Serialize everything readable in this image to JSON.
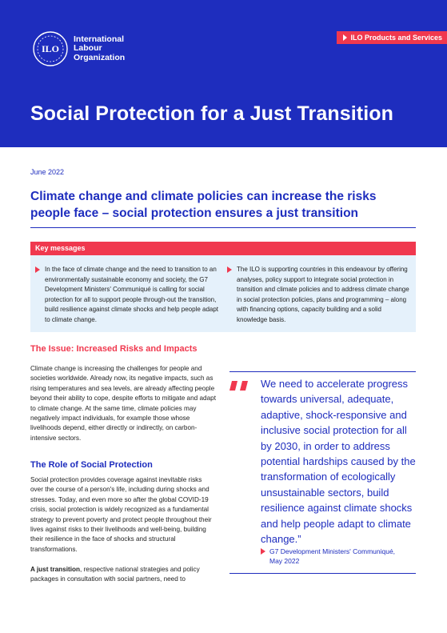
{
  "header": {
    "org_line1": "International",
    "org_line2": "Labour",
    "org_line3": "Organization",
    "logo_text": "ILO",
    "products_label": "ILO Products and Services",
    "title": "Social Protection for a Just Transition"
  },
  "date": "June 2022",
  "subtitle": "Climate change and climate policies can increase the risks people face – social protection ensures a just transition",
  "key_messages": {
    "heading": "Key messages",
    "items": [
      "In the face of climate change and the need to transition to an environmentally sustainable economy and society, the G7 Development Ministers' Communiqué is calling for social protection for all to support people through-out the transition, build resilience against climate shocks and help people adapt to climate change.",
      "The ILO is supporting countries in this endeavour by offering analyses, policy support to integrate social protection in transition and climate policies and to address climate change in social protection policies, plans and programming – along with financing options, capacity building and a solid knowledge basis."
    ]
  },
  "issue": {
    "heading": "The Issue: Increased Risks and Impacts",
    "text": "Climate change is increasing the challenges for people and societies worldwide. Already now, its negative impacts, such as rising temperatures and sea levels, are already affecting people beyond their ability to cope, despite efforts to mitigate and adapt to climate change. At the same time, climate policies may negatively impact individuals, for example those whose livelihoods depend, either directly or indirectly, on carbon-intensive sectors."
  },
  "role": {
    "heading": "The Role of Social Protection",
    "text": "Social protection provides coverage against inevitable risks over the course of a person's life, including during shocks and stresses. Today, and even more so after the global COVID-19 crisis, social protection is widely recognized as a fundamental strategy to prevent poverty and protect people throughout their lives against risks to their livelihoods and well-being, building their resilience in the face of shocks and structural transformations.",
    "text2_bold": "A just transition",
    "text2_rest": ", respective national strategies and policy packages in consultation with social partners, need to"
  },
  "quote": {
    "text": "We need to accelerate progress towards universal, adequate, adaptive, shock-responsive and inclusive social protection for all by 2030, in order to address potential hardships caused by the transformation of ecologically unsustainable sectors, build resilience against climate shocks and help people adapt to climate change.”",
    "source_line1": "G7 Development Ministers' Communiqué,",
    "source_line2": "May 2022"
  },
  "colors": {
    "brand_blue": "#1e2dbe",
    "accent_red": "#f0384e",
    "box_light_blue": "#e5f1fb"
  }
}
